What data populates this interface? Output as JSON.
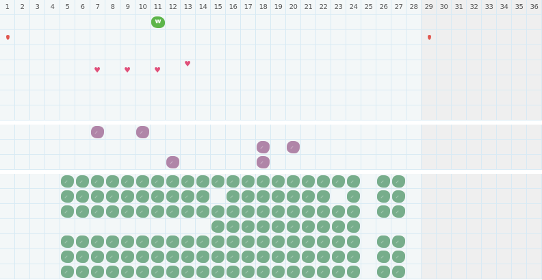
{
  "columns": [
    "1",
    "2",
    "3",
    "4",
    "5",
    "6",
    "7",
    "8",
    "9",
    "10",
    "11",
    "12",
    "13",
    "14",
    "15",
    "16",
    "17",
    "18",
    "19",
    "20",
    "21",
    "22",
    "23",
    "24",
    "25",
    "26",
    "27",
    "28",
    "29",
    "30",
    "31",
    "32",
    "33",
    "34",
    "35",
    "36"
  ],
  "shaded_from_column": 29,
  "colors": {
    "grid_bg": "#f3f7f8",
    "shaded_bg": "#efefef",
    "grid_line": "#d8eaf4",
    "green_blob": "#77ad8b",
    "purple_blob": "#b085a8",
    "w_blob": "#5cb54a",
    "drop": "#e0574f",
    "heart": "#e0507a"
  },
  "sections": [
    {
      "rows": 7,
      "w_markers": [
        {
          "row": 1,
          "col": 11,
          "label": "w"
        }
      ],
      "drops": [
        {
          "row": 2,
          "col": 1
        },
        {
          "row": 2,
          "col": 29
        }
      ],
      "hearts": [
        {
          "row": 4,
          "col": 7
        },
        {
          "row": 4,
          "col": 9
        },
        {
          "row": 4,
          "col": 11
        },
        {
          "row": 4,
          "col": 13
        }
      ]
    },
    {
      "rows": 3,
      "purple_blobs": [
        {
          "row": 1,
          "col": 7
        },
        {
          "row": 1,
          "col": 10
        },
        {
          "row": 2,
          "col": 18
        },
        {
          "row": 2,
          "col": 20
        },
        {
          "row": 3,
          "col": 12
        },
        {
          "row": 3,
          "col": 18
        }
      ]
    },
    {
      "rows": 7,
      "green_rows": [
        [
          5,
          6,
          7,
          8,
          9,
          10,
          11,
          12,
          13,
          14,
          15,
          16,
          17,
          18,
          19,
          20,
          21,
          22,
          23,
          24,
          26,
          27
        ],
        [
          5,
          6,
          7,
          8,
          9,
          10,
          11,
          12,
          13,
          14,
          16,
          17,
          18,
          19,
          20,
          21,
          22,
          24,
          26,
          27
        ],
        [
          5,
          6,
          7,
          8,
          9,
          10,
          11,
          12,
          13,
          14,
          15,
          16,
          17,
          18,
          19,
          20,
          21,
          22,
          23,
          24,
          26,
          27
        ],
        [
          15,
          16,
          17,
          18,
          19,
          20,
          21,
          22,
          23,
          24
        ],
        [
          5,
          6,
          7,
          8,
          9,
          10,
          11,
          12,
          13,
          14,
          15,
          16,
          17,
          18,
          19,
          20,
          21,
          22,
          23,
          24,
          26,
          27
        ],
        [
          5,
          6,
          7,
          8,
          9,
          10,
          11,
          12,
          13,
          14,
          15,
          16,
          17,
          18,
          19,
          20,
          21,
          22,
          23,
          24,
          26,
          27
        ],
        [
          5,
          6,
          7,
          8,
          9,
          10,
          11,
          12,
          13,
          14,
          15,
          16,
          17,
          18,
          19,
          20,
          21,
          22,
          23,
          24,
          26,
          27
        ]
      ]
    }
  ]
}
